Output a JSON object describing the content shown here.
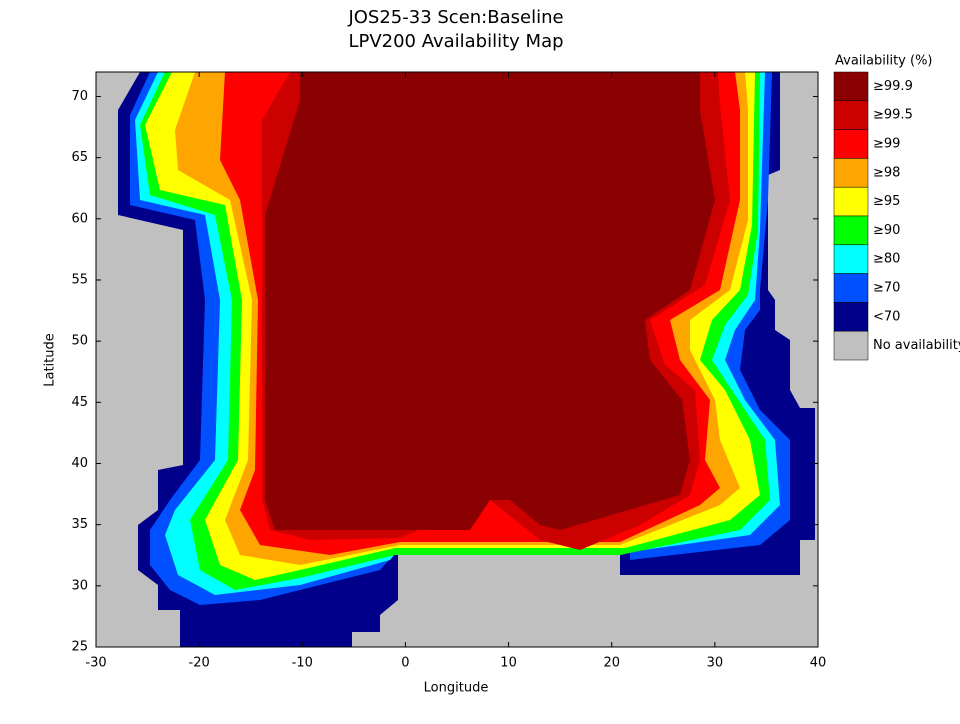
{
  "chart_data": {
    "type": "map",
    "title": "JOS25-33 Scen:Baseline",
    "subtitle": "LPV200 Availability Map",
    "x_label": "Longitude",
    "y_label": "Latitude",
    "xlim": [
      -30,
      40
    ],
    "ylim": [
      25,
      72
    ],
    "xticks": [
      -30,
      -20,
      -10,
      0,
      10,
      20,
      30,
      40
    ],
    "yticks": [
      25,
      30,
      35,
      40,
      45,
      50,
      55,
      60,
      65,
      70
    ],
    "legend": {
      "title": "Availability (%)",
      "entries": [
        {
          "label": "≥99.9",
          "color": "#8b0000"
        },
        {
          "label": "≥99.5",
          "color": "#cd0000"
        },
        {
          "label": "≥99",
          "color": "#ff0000"
        },
        {
          "label": "≥98",
          "color": "#ffa500"
        },
        {
          "label": "≥95",
          "color": "#ffff00"
        },
        {
          "label": "≥90",
          "color": "#00ff00"
        },
        {
          "label": "≥80",
          "color": "#00ffff"
        },
        {
          "label": "≥70",
          "color": "#0050ff"
        },
        {
          "label": "<70",
          "color": "#00008b"
        },
        {
          "label": "No availability",
          "color": "#c0c0c0"
        }
      ]
    }
  }
}
